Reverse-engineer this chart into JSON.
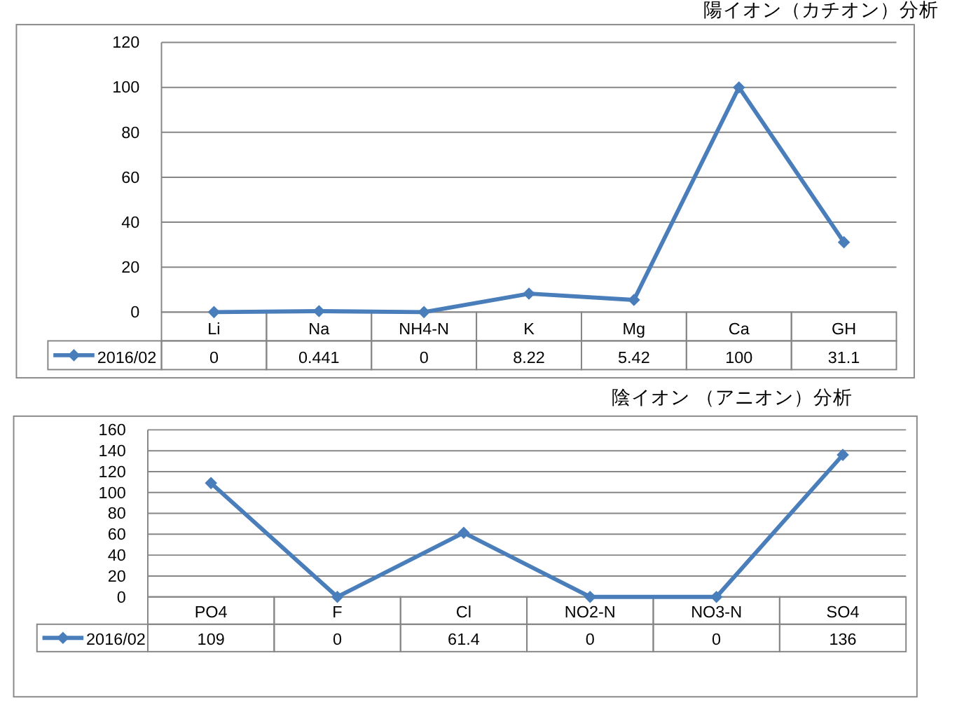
{
  "chart_data": [
    {
      "type": "line",
      "title": "陽イオン（カチオン）分析",
      "categories": [
        "Li",
        "Na",
        "NH4-N",
        "K",
        "Mg",
        "Ca",
        "GH"
      ],
      "series": [
        {
          "name": "2016/02",
          "color": "#4a7ebb",
          "values": [
            0,
            0.441,
            0,
            8.22,
            5.42,
            100,
            31.1
          ]
        }
      ],
      "ylim": [
        0,
        120
      ],
      "yticks": [
        0,
        20,
        40,
        60,
        80,
        100,
        120
      ],
      "grid": "y",
      "marker": "diamond",
      "data_labels": true,
      "legend": "bottom"
    },
    {
      "type": "line",
      "title": "陰イオン （アニオン）分析",
      "categories": [
        "PO4",
        "F",
        "Cl",
        "NO2-N",
        "NO3-N",
        "SO4"
      ],
      "series": [
        {
          "name": "2016/02",
          "color": "#4a7ebb",
          "values": [
            109,
            0,
            61.4,
            0,
            0,
            136
          ]
        }
      ],
      "ylim": [
        0,
        160
      ],
      "yticks": [
        0,
        20,
        40,
        60,
        80,
        100,
        120,
        140,
        160
      ],
      "grid": "y",
      "marker": "diamond",
      "data_labels": true,
      "legend": "bottom"
    }
  ]
}
